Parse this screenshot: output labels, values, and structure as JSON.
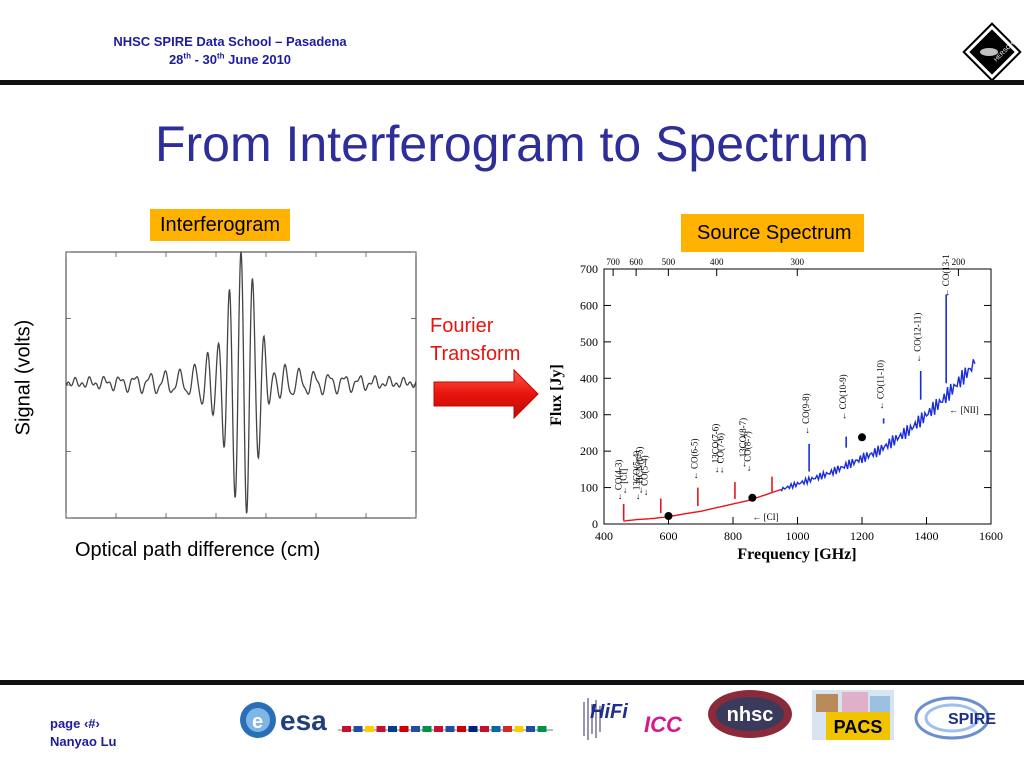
{
  "header": {
    "line1": "NHSC SPIRE Data School – Pasadena",
    "line2_part1": "28",
    "line2_sup1": "th",
    "line2_part2": " - 30",
    "line2_sup2": "th",
    "line2_part3": " June 2010",
    "logo_text": "HERSCHEL"
  },
  "title": "From Interferogram to Spectrum",
  "interferogram": {
    "box_label": "Interferogram",
    "y_label": "Signal (volts)",
    "x_label": "Optical path difference  (cm)"
  },
  "transform": {
    "line1": "Fourier",
    "line2": "Transform"
  },
  "spectrum": {
    "box_label": "Source Spectrum",
    "y_label": "Flux [Jy]",
    "x_label": "Frequency [GHz]",
    "x_ticks": [
      "400",
      "600",
      "800",
      "1000",
      "1200",
      "1400",
      "1600"
    ],
    "y_ticks": [
      "0",
      "100",
      "200",
      "300",
      "400",
      "500",
      "600",
      "700"
    ],
    "top_ticks": [
      "700",
      "600",
      "500",
      "400",
      "300",
      "200"
    ],
    "line_labels": [
      "CO(4-3)",
      "[CI]",
      "13CO(5-4)",
      "HCN(6-5)",
      "CO(5-4)",
      "CO(6-5)",
      "13CO(7-6)",
      "CO(7-6)",
      "13CO(8-7)",
      "CO(8-7)",
      "CO(9-8)",
      "CO(10-9)",
      "CO(11-10)",
      "CO(12-11)",
      "CO(13-12)",
      "[CI]",
      "[NII]"
    ]
  },
  "footer": {
    "page": "page ‹#›",
    "author": "Nanyao Lu",
    "logos": [
      "esa",
      "HiFi",
      "ICC",
      "nhsc",
      "PACS",
      "SPIRE"
    ]
  },
  "chart_data": [
    {
      "type": "line",
      "title": "Interferogram",
      "xlabel": "Optical path difference  (cm)",
      "ylabel": "Signal (volts)",
      "series": [
        {
          "values": [
            0,
            0.02,
            -0.05,
            0.08,
            -0.12,
            0.2,
            -0.35,
            0.55,
            -0.8,
            1.0,
            -0.8,
            0.55,
            -0.35,
            0.2,
            -0.12,
            0.08,
            -0.05,
            0.02,
            0
          ]
        }
      ]
    },
    {
      "type": "line",
      "title": "Source Spectrum",
      "xlabel": "Frequency [GHz]",
      "ylabel": "Flux [Jy]",
      "xlim": [
        400,
        1600
      ],
      "ylim": [
        0,
        700
      ],
      "series": [
        {
          "name": "",
          "color": "#e8141b",
          "x": [
            460,
            500,
            550,
            600,
            650,
            700,
            750,
            800,
            850,
            900,
            950
          ],
          "y": [
            8,
            12,
            15,
            20,
            28,
            35,
            45,
            55,
            65,
            80,
            95
          ]
        },
        {
          "name": "",
          "color": "#1a2ed6",
          "x": [
            950,
            1000,
            1050,
            1100,
            1150,
            1200,
            1250,
            1300,
            1350,
            1400,
            1450,
            1500,
            1550
          ],
          "y": [
            95,
            110,
            125,
            140,
            160,
            180,
            200,
            230,
            260,
            300,
            340,
            390,
            440
          ]
        }
      ],
      "lines": [
        {
          "x": 461,
          "y": 55,
          "color": "#e8141b"
        },
        {
          "x": 576,
          "y": 70,
          "color": "#e8141b"
        },
        {
          "x": 691,
          "y": 100,
          "color": "#e8141b"
        },
        {
          "x": 806,
          "y": 115,
          "color": "#e8141b"
        },
        {
          "x": 921,
          "y": 130,
          "color": "#e8141b"
        },
        {
          "x": 1036,
          "y": 220,
          "color": "#1a2ed6"
        },
        {
          "x": 1151,
          "y": 240,
          "color": "#1a2ed6"
        },
        {
          "x": 1267,
          "y": 290,
          "color": "#1a2ed6"
        },
        {
          "x": 1382,
          "y": 420,
          "color": "#1a2ed6"
        },
        {
          "x": 1461,
          "y": 630,
          "color": "#1a2ed6"
        }
      ],
      "points": [
        {
          "x": 600,
          "y": 22
        },
        {
          "x": 860,
          "y": 72
        },
        {
          "x": 1200,
          "y": 238
        }
      ]
    }
  ]
}
